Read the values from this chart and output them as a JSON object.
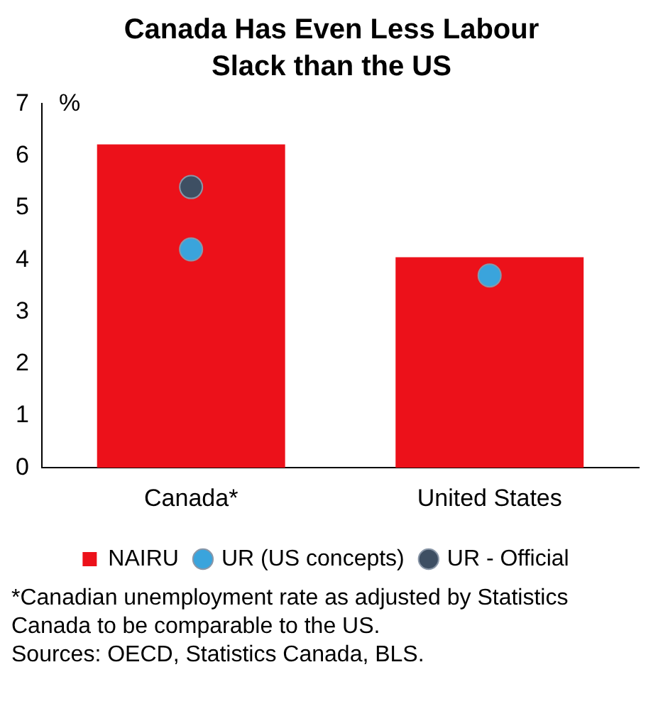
{
  "chart_data": {
    "type": "bar",
    "title": "Canada Has Even Less Labour Slack than the US",
    "ylabel": "%",
    "categories": [
      "Canada*",
      "United States"
    ],
    "series": [
      {
        "name": "NAIRU",
        "color": "#ec111a",
        "values": [
          6.22,
          4.05
        ]
      },
      {
        "name": "UR (US concepts)",
        "type": "scatter",
        "color": "#3aa4dc",
        "marker": "circle",
        "values": [
          4.2,
          3.7
        ]
      },
      {
        "name": "UR - Official",
        "type": "scatter",
        "color": "#3e4f63",
        "marker": "circle",
        "values": [
          5.4,
          null
        ]
      }
    ],
    "ylim": [
      0,
      7
    ],
    "yticks": [
      0,
      1,
      2,
      3,
      4,
      5,
      6,
      7
    ],
    "grid": false,
    "legend": "bottom",
    "annotations": [
      "*Canadian unemployment rate as adjusted by Statistics Canada to be comparable to the US.",
      "Sources: OECD, Statistics Canada, BLS."
    ]
  }
}
